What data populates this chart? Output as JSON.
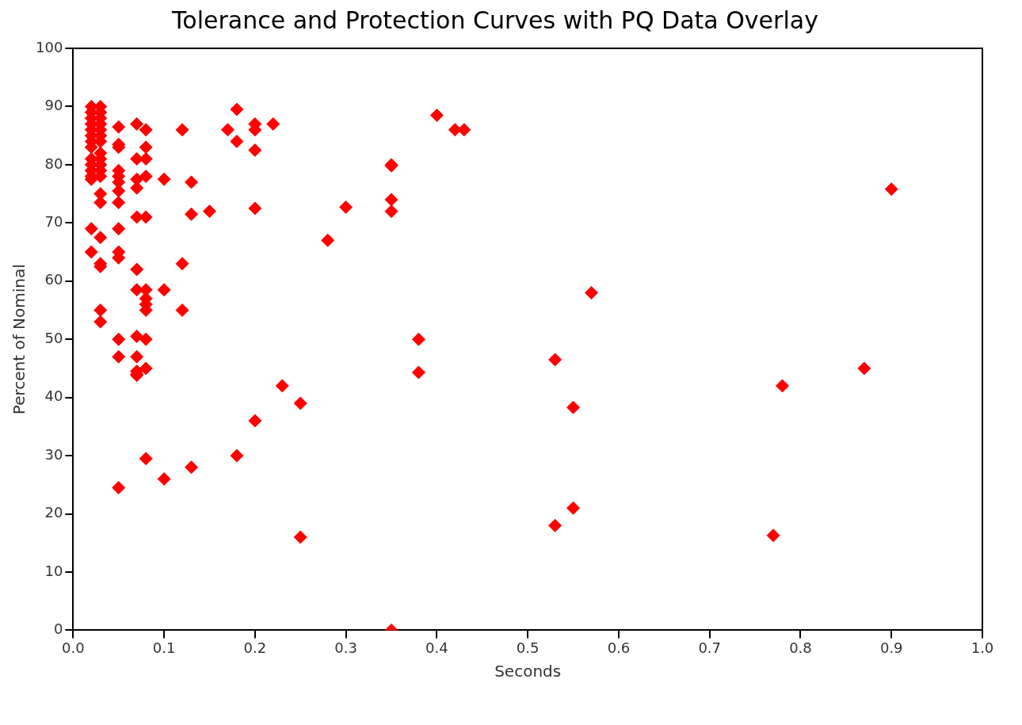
{
  "chart_data": {
    "type": "scatter",
    "title": "Tolerance and Protection Curves with PQ Data Overlay",
    "xlabel": "Seconds",
    "ylabel": "Percent of Nominal",
    "marker": "diamond",
    "legend": false,
    "grid": false,
    "xlim": [
      0,
      1
    ],
    "ylim": [
      0,
      100
    ],
    "xticks": [
      {
        "value": 0,
        "label": "0.0"
      },
      {
        "value": 0.1,
        "label": "0.1"
      },
      {
        "value": 0.2,
        "label": "0.2"
      },
      {
        "value": 0.3,
        "label": "0.3"
      },
      {
        "value": 0.4,
        "label": "0.4"
      },
      {
        "value": 0.5,
        "label": "0.5"
      },
      {
        "value": 0.6,
        "label": "0.6"
      },
      {
        "value": 0.7,
        "label": "0.7"
      },
      {
        "value": 0.8,
        "label": "0.8"
      },
      {
        "value": 0.9,
        "label": "0.9"
      },
      {
        "value": 1,
        "label": "1.0"
      }
    ],
    "yticks": [
      0,
      10,
      20,
      30,
      40,
      50,
      60,
      70,
      80,
      90,
      100
    ],
    "series": [
      {
        "color": "#ff0000",
        "x": [
          0.02,
          0.02,
          0.02,
          0.02,
          0.02,
          0.02,
          0.02,
          0.02,
          0.02,
          0.02,
          0.02,
          0.02,
          0.02,
          0.02,
          0.02,
          0.03,
          0.03,
          0.03,
          0.03,
          0.03,
          0.03,
          0.03,
          0.03,
          0.03,
          0.03,
          0.03,
          0.03,
          0.03,
          0.03,
          0.03,
          0.03,
          0.03,
          0.03,
          0.03,
          0.05,
          0.05,
          0.05,
          0.05,
          0.05,
          0.05,
          0.05,
          0.05,
          0.05,
          0.05,
          0.05,
          0.05,
          0.05,
          0.05,
          0.07,
          0.07,
          0.07,
          0.07,
          0.07,
          0.07,
          0.07,
          0.07,
          0.07,
          0.07,
          0.07,
          0.07,
          0.08,
          0.08,
          0.08,
          0.08,
          0.08,
          0.08,
          0.08,
          0.08,
          0.08,
          0.08,
          0.08,
          0.08,
          0.1,
          0.1,
          0.1,
          0.12,
          0.12,
          0.12,
          0.13,
          0.13,
          0.13,
          0.15,
          0.17,
          0.18,
          0.18,
          0.18,
          0.2,
          0.2,
          0.2,
          0.2,
          0.2,
          0.22,
          0.23,
          0.25,
          0.25,
          0.28,
          0.3,
          0.35,
          0.35,
          0.35,
          0.35,
          0.35,
          0.38,
          0.38,
          0.4,
          0.42,
          0.43,
          0.53,
          0.53,
          0.55,
          0.55,
          0.57,
          0.77,
          0.78,
          0.87,
          0.9
        ],
        "values": [
          90,
          89,
          88,
          87,
          86,
          85,
          84,
          83,
          81,
          80,
          79,
          78,
          77.5,
          69,
          65,
          90,
          89,
          88,
          87,
          86,
          85,
          84,
          82,
          81,
          80,
          79,
          78,
          75,
          73.5,
          67.5,
          63,
          62.5,
          55,
          53,
          86.5,
          83.5,
          83,
          79,
          78,
          77,
          75.5,
          73.5,
          69,
          65,
          64,
          50,
          47,
          24.5,
          87,
          81,
          77.5,
          76,
          71,
          62,
          58.5,
          50.5,
          47,
          44.5,
          44,
          43.8,
          86,
          83,
          81,
          78,
          71,
          58.5,
          57,
          56,
          55,
          50,
          45,
          29.5,
          77.5,
          58.5,
          26,
          86,
          63,
          55,
          77,
          71.5,
          28,
          72,
          86,
          89.5,
          84,
          30,
          87,
          86,
          82.5,
          72.5,
          36,
          87,
          42,
          39,
          16,
          67,
          72.7,
          80,
          79.8,
          74,
          72,
          0,
          50,
          44.3,
          88.5,
          86,
          86,
          46.5,
          18,
          38.3,
          21,
          58,
          16.3,
          42,
          45,
          75.8
        ]
      }
    ]
  }
}
